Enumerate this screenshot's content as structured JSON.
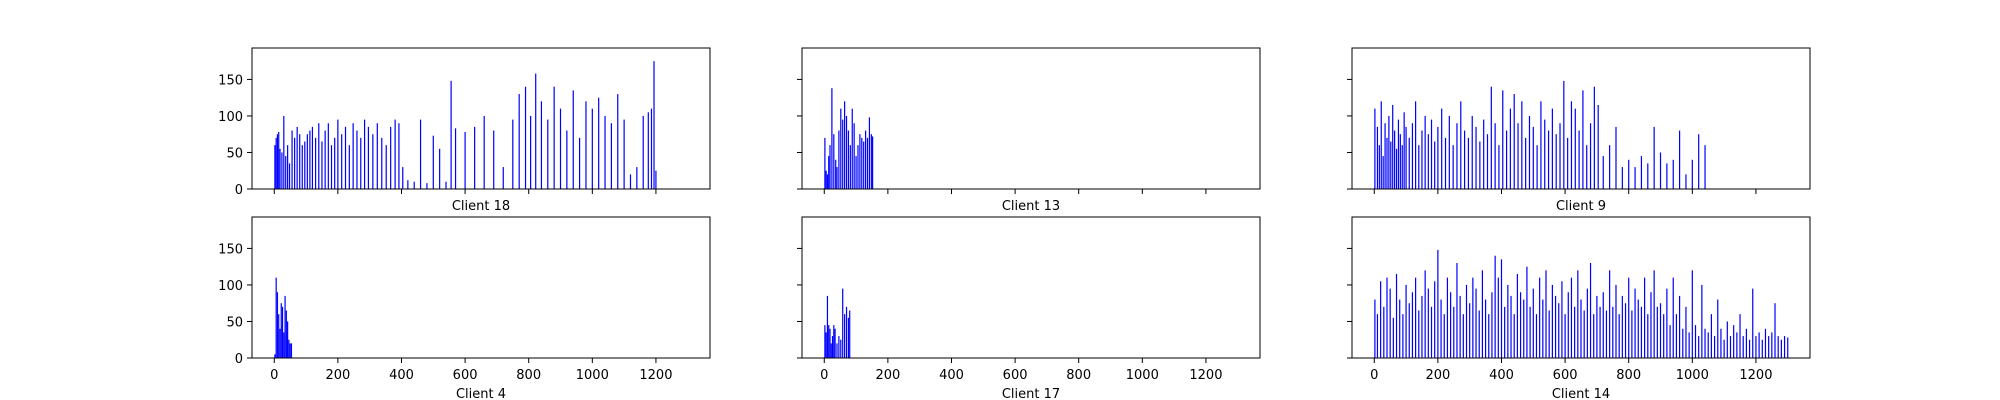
{
  "figure": {
    "background": "#ffffff"
  },
  "colors": {
    "bar": "#0000ff",
    "axes": "#000000"
  },
  "x_ticks": [
    0,
    200,
    400,
    600,
    800,
    1000,
    1200
  ],
  "y_ticks": [
    0,
    50,
    100,
    150
  ],
  "chart_data": [
    {
      "type": "bar",
      "xlabel": "Client 18",
      "xlim": [
        -70,
        1370
      ],
      "ylim": [
        0,
        193
      ],
      "show_x_tick_labels": false,
      "show_y_tick_labels": true,
      "x": [
        2,
        6,
        10,
        14,
        18,
        24,
        30,
        36,
        42,
        48,
        56,
        64,
        72,
        80,
        88,
        96,
        104,
        112,
        120,
        130,
        140,
        150,
        160,
        170,
        180,
        190,
        200,
        212,
        224,
        236,
        248,
        260,
        272,
        284,
        296,
        310,
        324,
        338,
        352,
        366,
        380,
        392,
        404,
        420,
        440,
        460,
        480,
        500,
        520,
        540,
        556,
        570,
        600,
        630,
        660,
        690,
        720,
        750,
        770,
        790,
        806,
        822,
        840,
        860,
        880,
        900,
        920,
        940,
        960,
        980,
        1000,
        1020,
        1040,
        1060,
        1080,
        1100,
        1120,
        1140,
        1160,
        1176,
        1186,
        1194,
        1200
      ],
      "values": [
        60,
        70,
        75,
        78,
        55,
        50,
        100,
        45,
        60,
        35,
        80,
        70,
        85,
        75,
        60,
        65,
        75,
        80,
        85,
        70,
        90,
        65,
        80,
        90,
        60,
        70,
        95,
        75,
        85,
        60,
        90,
        80,
        70,
        95,
        85,
        75,
        90,
        70,
        60,
        85,
        95,
        90,
        30,
        12,
        10,
        95,
        8,
        73,
        55,
        10,
        148,
        83,
        78,
        85,
        100,
        80,
        30,
        95,
        130,
        140,
        100,
        158,
        120,
        95,
        140,
        110,
        80,
        135,
        70,
        120,
        110,
        125,
        100,
        90,
        130,
        95,
        20,
        30,
        100,
        105,
        110,
        175,
        25
      ]
    },
    {
      "type": "bar",
      "xlabel": "Client 13",
      "xlim": [
        -70,
        1370
      ],
      "ylim": [
        0,
        193
      ],
      "show_x_tick_labels": false,
      "show_y_tick_labels": false,
      "x": [
        2,
        6,
        10,
        14,
        18,
        24,
        30,
        36,
        40,
        46,
        52,
        58,
        64,
        70,
        76,
        82,
        88,
        94,
        100,
        106,
        112,
        118,
        124,
        130,
        136,
        142,
        148,
        152
      ],
      "values": [
        70,
        25,
        20,
        45,
        60,
        138,
        75,
        40,
        30,
        80,
        110,
        95,
        120,
        100,
        80,
        60,
        110,
        90,
        45,
        60,
        75,
        70,
        65,
        80,
        70,
        98,
        75,
        72
      ]
    },
    {
      "type": "bar",
      "xlabel": "Client 9",
      "xlim": [
        -70,
        1370
      ],
      "ylim": [
        0,
        193
      ],
      "show_x_tick_labels": false,
      "show_y_tick_labels": false,
      "x": [
        2,
        10,
        16,
        22,
        28,
        34,
        40,
        46,
        52,
        58,
        64,
        70,
        76,
        82,
        88,
        94,
        100,
        110,
        120,
        130,
        140,
        150,
        160,
        170,
        180,
        190,
        200,
        212,
        224,
        236,
        248,
        260,
        272,
        284,
        296,
        308,
        320,
        332,
        344,
        356,
        368,
        380,
        392,
        404,
        416,
        428,
        440,
        452,
        464,
        476,
        488,
        500,
        512,
        524,
        536,
        548,
        560,
        572,
        584,
        596,
        608,
        620,
        632,
        644,
        656,
        668,
        680,
        692,
        704,
        720,
        740,
        760,
        780,
        800,
        820,
        840,
        860,
        880,
        900,
        920,
        940,
        960,
        980,
        1000,
        1020,
        1040
      ],
      "values": [
        110,
        85,
        60,
        120,
        45,
        90,
        70,
        100,
        65,
        115,
        80,
        55,
        95,
        75,
        60,
        105,
        85,
        70,
        90,
        120,
        60,
        80,
        100,
        75,
        95,
        65,
        85,
        110,
        70,
        100,
        60,
        90,
        120,
        80,
        70,
        100,
        85,
        65,
        95,
        75,
        140,
        90,
        60,
        135,
        80,
        110,
        130,
        90,
        120,
        70,
        100,
        85,
        60,
        120,
        95,
        80,
        110,
        75,
        90,
        148,
        70,
        120,
        110,
        80,
        135,
        60,
        90,
        140,
        115,
        45,
        60,
        85,
        30,
        40,
        30,
        45,
        35,
        85,
        50,
        35,
        40,
        80,
        20,
        40,
        75,
        60
      ]
    },
    {
      "type": "bar",
      "xlabel": "Client 4",
      "xlim": [
        -70,
        1370
      ],
      "ylim": [
        0,
        193
      ],
      "show_x_tick_labels": true,
      "show_y_tick_labels": true,
      "x": [
        2,
        6,
        10,
        14,
        18,
        22,
        26,
        30,
        34,
        38,
        42,
        46,
        50,
        54
      ],
      "values": [
        5,
        110,
        90,
        60,
        40,
        75,
        70,
        35,
        85,
        65,
        50,
        25,
        20,
        20
      ]
    },
    {
      "type": "bar",
      "xlabel": "Client 17",
      "xlim": [
        -70,
        1370
      ],
      "ylim": [
        0,
        193
      ],
      "show_x_tick_labels": true,
      "show_y_tick_labels": false,
      "x": [
        2,
        6,
        10,
        14,
        18,
        22,
        26,
        30,
        34,
        40,
        46,
        52,
        58,
        64,
        70,
        76,
        80
      ],
      "values": [
        45,
        35,
        85,
        45,
        40,
        20,
        30,
        45,
        40,
        20,
        30,
        25,
        95,
        60,
        70,
        55,
        65
      ]
    },
    {
      "type": "bar",
      "xlabel": "Client 14",
      "xlim": [
        -70,
        1370
      ],
      "ylim": [
        0,
        193
      ],
      "show_x_tick_labels": true,
      "show_y_tick_labels": false,
      "x": [
        2,
        10,
        20,
        30,
        40,
        50,
        60,
        70,
        80,
        90,
        100,
        110,
        120,
        130,
        140,
        150,
        160,
        170,
        180,
        190,
        200,
        210,
        220,
        230,
        240,
        250,
        260,
        270,
        280,
        290,
        300,
        310,
        320,
        330,
        340,
        350,
        360,
        370,
        380,
        390,
        400,
        410,
        420,
        430,
        440,
        450,
        460,
        470,
        480,
        490,
        500,
        510,
        520,
        530,
        540,
        550,
        560,
        570,
        580,
        590,
        600,
        610,
        620,
        630,
        640,
        650,
        660,
        670,
        680,
        690,
        700,
        710,
        720,
        730,
        740,
        750,
        760,
        770,
        780,
        790,
        800,
        810,
        820,
        830,
        840,
        850,
        860,
        870,
        880,
        890,
        900,
        910,
        920,
        930,
        940,
        950,
        960,
        970,
        980,
        990,
        1000,
        1010,
        1020,
        1030,
        1040,
        1050,
        1060,
        1070,
        1080,
        1090,
        1100,
        1110,
        1120,
        1130,
        1140,
        1150,
        1160,
        1170,
        1180,
        1190,
        1200,
        1210,
        1220,
        1230,
        1240,
        1250,
        1260,
        1270,
        1280,
        1290,
        1300
      ],
      "values": [
        80,
        60,
        105,
        70,
        110,
        95,
        55,
        115,
        80,
        60,
        100,
        75,
        90,
        110,
        65,
        85,
        120,
        95,
        70,
        105,
        148,
        80,
        60,
        110,
        90,
        70,
        130,
        85,
        60,
        100,
        75,
        110,
        95,
        65,
        120,
        80,
        60,
        90,
        140,
        110,
        135,
        70,
        100,
        85,
        60,
        115,
        90,
        80,
        125,
        70,
        95,
        60,
        110,
        80,
        120,
        65,
        100,
        85,
        75,
        105,
        60,
        90,
        110,
        70,
        120,
        80,
        65,
        95,
        130,
        60,
        85,
        70,
        90,
        65,
        120,
        70,
        100,
        60,
        85,
        75,
        110,
        65,
        95,
        80,
        70,
        110,
        60,
        90,
        120,
        70,
        75,
        60,
        95,
        45,
        110,
        60,
        85,
        40,
        70,
        35,
        120,
        45,
        30,
        100,
        40,
        35,
        60,
        30,
        80,
        40,
        25,
        50,
        30,
        45,
        35,
        60,
        30,
        40,
        25,
        95,
        30,
        35,
        25,
        40,
        30,
        35,
        75,
        30,
        25,
        30,
        28
      ]
    }
  ]
}
